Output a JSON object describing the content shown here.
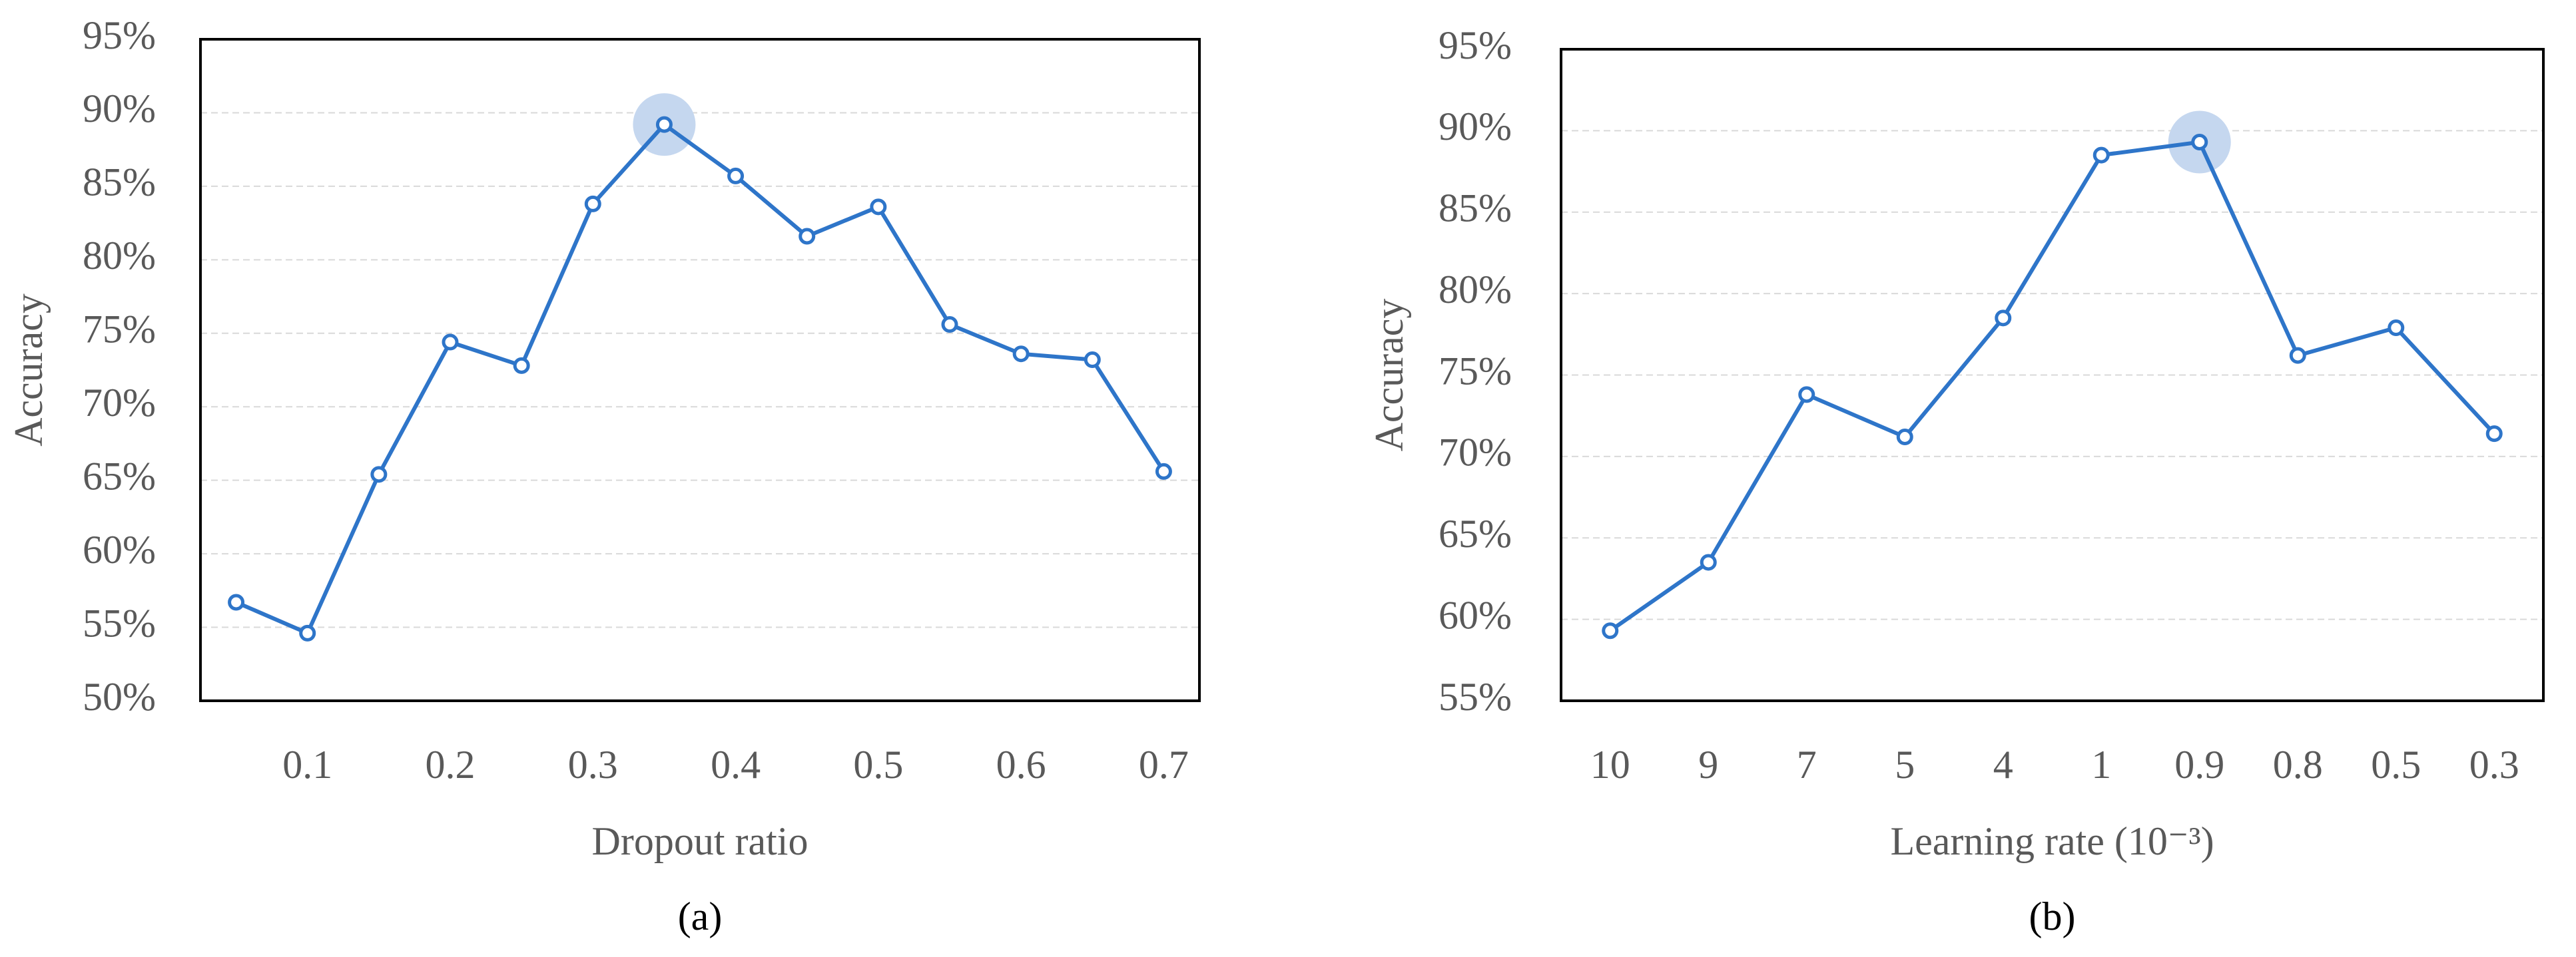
{
  "chart_data": [
    {
      "type": "line",
      "label": "(a)",
      "x_label": "Dropout ratio",
      "y_label": "Accuracy",
      "categories": [
        null,
        "0.1",
        null,
        "0.2",
        null,
        "0.3",
        null,
        "0.4",
        null,
        "0.5",
        null,
        "0.6",
        null,
        "0.7"
      ],
      "series": [
        {
          "color": "#2e75c9",
          "values": [
            56.7,
            54.6,
            65.4,
            74.4,
            72.8,
            83.8,
            89.2,
            85.7,
            81.6,
            83.6,
            75.6,
            73.6,
            73.2,
            65.6
          ]
        }
      ],
      "ylim": [
        50,
        95
      ],
      "yticks": [
        {
          "value": 50,
          "label": "50%"
        },
        {
          "value": 55,
          "label": "55%"
        },
        {
          "value": 60,
          "label": "60%"
        },
        {
          "value": 65,
          "label": "65%"
        },
        {
          "value": 70,
          "label": "70%"
        },
        {
          "value": 75,
          "label": "75%"
        },
        {
          "value": 80,
          "label": "80%"
        },
        {
          "value": 85,
          "label": "85%"
        },
        {
          "value": 90,
          "label": "90%"
        },
        {
          "value": 95,
          "label": "95%"
        }
      ],
      "grid": true
    },
    {
      "type": "line",
      "label": "(b)",
      "x_label": "Learning rate (10⁻³)",
      "y_label": "Accuracy",
      "categories": [
        "10",
        "9",
        "7",
        "5",
        "4",
        "1",
        "0.9",
        "0.8",
        "0.5",
        "0.3"
      ],
      "series": [
        {
          "color": "#2e75c9",
          "values": [
            59.3,
            63.5,
            73.8,
            71.2,
            78.5,
            88.5,
            89.3,
            76.2,
            77.9,
            71.4
          ]
        }
      ],
      "ylim": [
        55,
        95
      ],
      "yticks": [
        {
          "value": 55,
          "label": "55%"
        },
        {
          "value": 60,
          "label": "60%"
        },
        {
          "value": 65,
          "label": "65%"
        },
        {
          "value": 70,
          "label": "70%"
        },
        {
          "value": 75,
          "label": "75%"
        },
        {
          "value": 80,
          "label": "80%"
        },
        {
          "value": 85,
          "label": "85%"
        },
        {
          "value": 90,
          "label": "90%"
        },
        {
          "value": 95,
          "label": "95%"
        }
      ],
      "grid": true
    }
  ]
}
